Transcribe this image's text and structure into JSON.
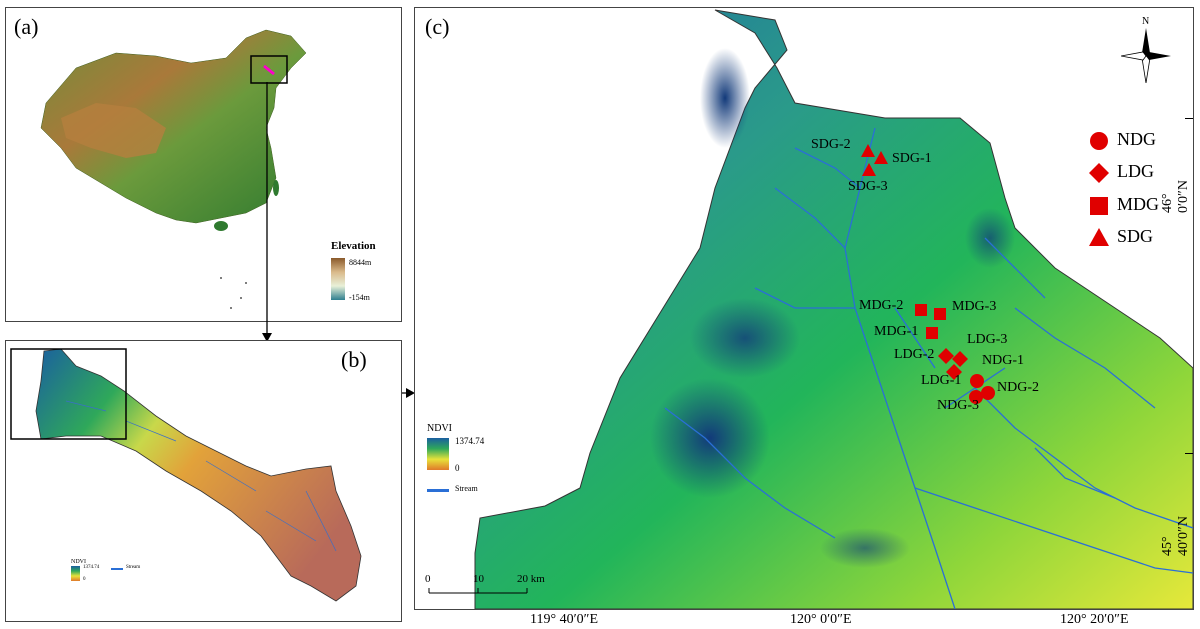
{
  "panels": {
    "a": {
      "label": "(a)"
    },
    "b": {
      "label": "(b)"
    },
    "c": {
      "label": "(c)"
    }
  },
  "elevation_legend": {
    "title": "Elevation",
    "max": "8844m",
    "min": "-154m",
    "colors": [
      "#8a5a2b",
      "#d9b98a",
      "#e8f0d8",
      "#2f7f8f"
    ]
  },
  "ndvi_legend_b": {
    "title": "NDVI",
    "max": "1374.74",
    "min": "0",
    "stream": "Stream"
  },
  "ndvi_legend_c": {
    "title": "NDVI",
    "max": "1374.74",
    "min": "0",
    "stream": "Stream"
  },
  "north_arrow": {
    "label": "N"
  },
  "site_legend": [
    {
      "shape": "circle",
      "label": "NDG"
    },
    {
      "shape": "diamond",
      "label": "LDG"
    },
    {
      "shape": "square",
      "label": "MDG"
    },
    {
      "shape": "triangle",
      "label": "SDG"
    }
  ],
  "sites": {
    "sdg1": "SDG-1",
    "sdg2": "SDG-2",
    "sdg3": "SDG-3",
    "mdg1": "MDG-1",
    "mdg2": "MDG-2",
    "mdg3": "MDG-3",
    "ldg1": "LDG-1",
    "ldg2": "LDG-2",
    "ldg3": "LDG-3",
    "ndg1": "NDG-1",
    "ndg2": "NDG-2",
    "ndg3": "NDG-3"
  },
  "scale_bar": {
    "t0": "0",
    "t1": "10",
    "t2": "20 km"
  },
  "longitudes": [
    "119° 40′0″E",
    "120° 0′0″E",
    "120° 20′0″E"
  ],
  "latitudes": [
    "46° 0′0″N",
    "45° 40′0″N"
  ],
  "colors": {
    "marker": "#e00000",
    "stream": "#2a6fd6"
  }
}
